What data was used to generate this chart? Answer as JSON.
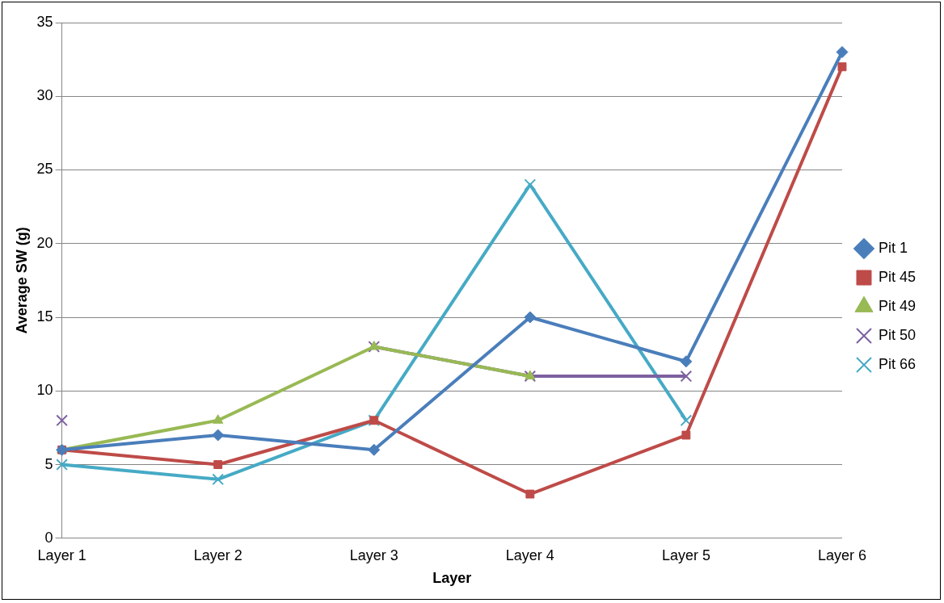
{
  "chart_data": {
    "type": "line",
    "xlabel": "Layer",
    "ylabel": "Average SW (g)",
    "categories": [
      "Layer 1",
      "Layer 2",
      "Layer 3",
      "Layer 4",
      "Layer 5",
      "Layer 6"
    ],
    "series": [
      {
        "name": "Pit 1",
        "color": "#4a7ebb",
        "marker": "diamond",
        "values": [
          6,
          7,
          6,
          15,
          12,
          33
        ]
      },
      {
        "name": "Pit 45",
        "color": "#be4b48",
        "marker": "square",
        "values": [
          6,
          5,
          8,
          3,
          7,
          32
        ]
      },
      {
        "name": "Pit 49",
        "color": "#98b954",
        "marker": "triangle",
        "values": [
          6,
          8,
          13,
          11,
          null,
          null
        ]
      },
      {
        "name": "Pit 50",
        "color": "#7d60a0",
        "marker": "cross",
        "values": [
          8,
          null,
          13,
          11,
          11,
          null
        ]
      },
      {
        "name": "Pit 66",
        "color": "#46aac5",
        "marker": "cross",
        "values": [
          5,
          4,
          8,
          24,
          8,
          null
        ]
      }
    ],
    "ylim": [
      0,
      35
    ],
    "yticks": [
      0,
      5,
      10,
      15,
      20,
      25,
      30,
      35
    ],
    "grid": "y",
    "legend": "right",
    "line_style": "solid"
  }
}
